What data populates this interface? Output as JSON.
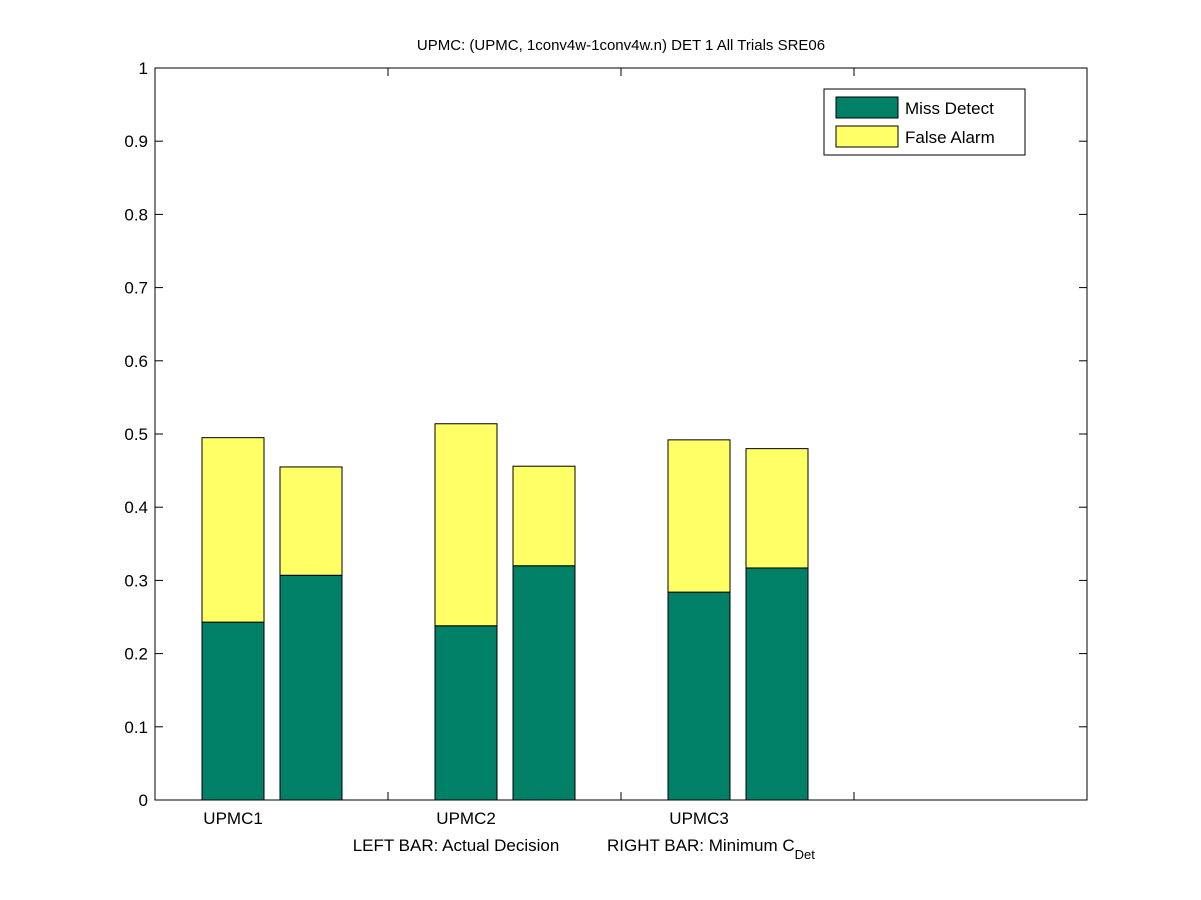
{
  "chart_data": {
    "type": "bar",
    "stacked": true,
    "title": "UPMC: (UPMC, 1conv4w-1conv4w.n) DET 1 All Trials SRE06",
    "xlabel_left": "LEFT BAR: Actual Decision",
    "xlabel_right_main": "RIGHT BAR: Minimum C",
    "xlabel_right_sub": "Det",
    "ylabel": "",
    "ylim": [
      0,
      1
    ],
    "yticks": [
      "0",
      "0.1",
      "0.2",
      "0.3",
      "0.4",
      "0.5",
      "0.6",
      "0.7",
      "0.8",
      "0.9",
      "1"
    ],
    "categories": [
      "UPMC1",
      "UPMC2",
      "UPMC3"
    ],
    "slots": 4,
    "legend": {
      "position": "top-right",
      "entries": [
        "Miss Detect",
        "False Alarm"
      ]
    },
    "colors": {
      "miss": "#008066",
      "fa": "#ffff66"
    },
    "series": [
      {
        "name": "Miss Detect",
        "bar": "left",
        "values": [
          0.243,
          0.238,
          0.284
        ]
      },
      {
        "name": "False Alarm",
        "bar": "left",
        "values": [
          0.252,
          0.276,
          0.208
        ]
      },
      {
        "name": "Miss Detect",
        "bar": "right",
        "values": [
          0.307,
          0.32,
          0.317
        ]
      },
      {
        "name": "False Alarm",
        "bar": "right",
        "values": [
          0.148,
          0.136,
          0.163
        ]
      }
    ]
  }
}
